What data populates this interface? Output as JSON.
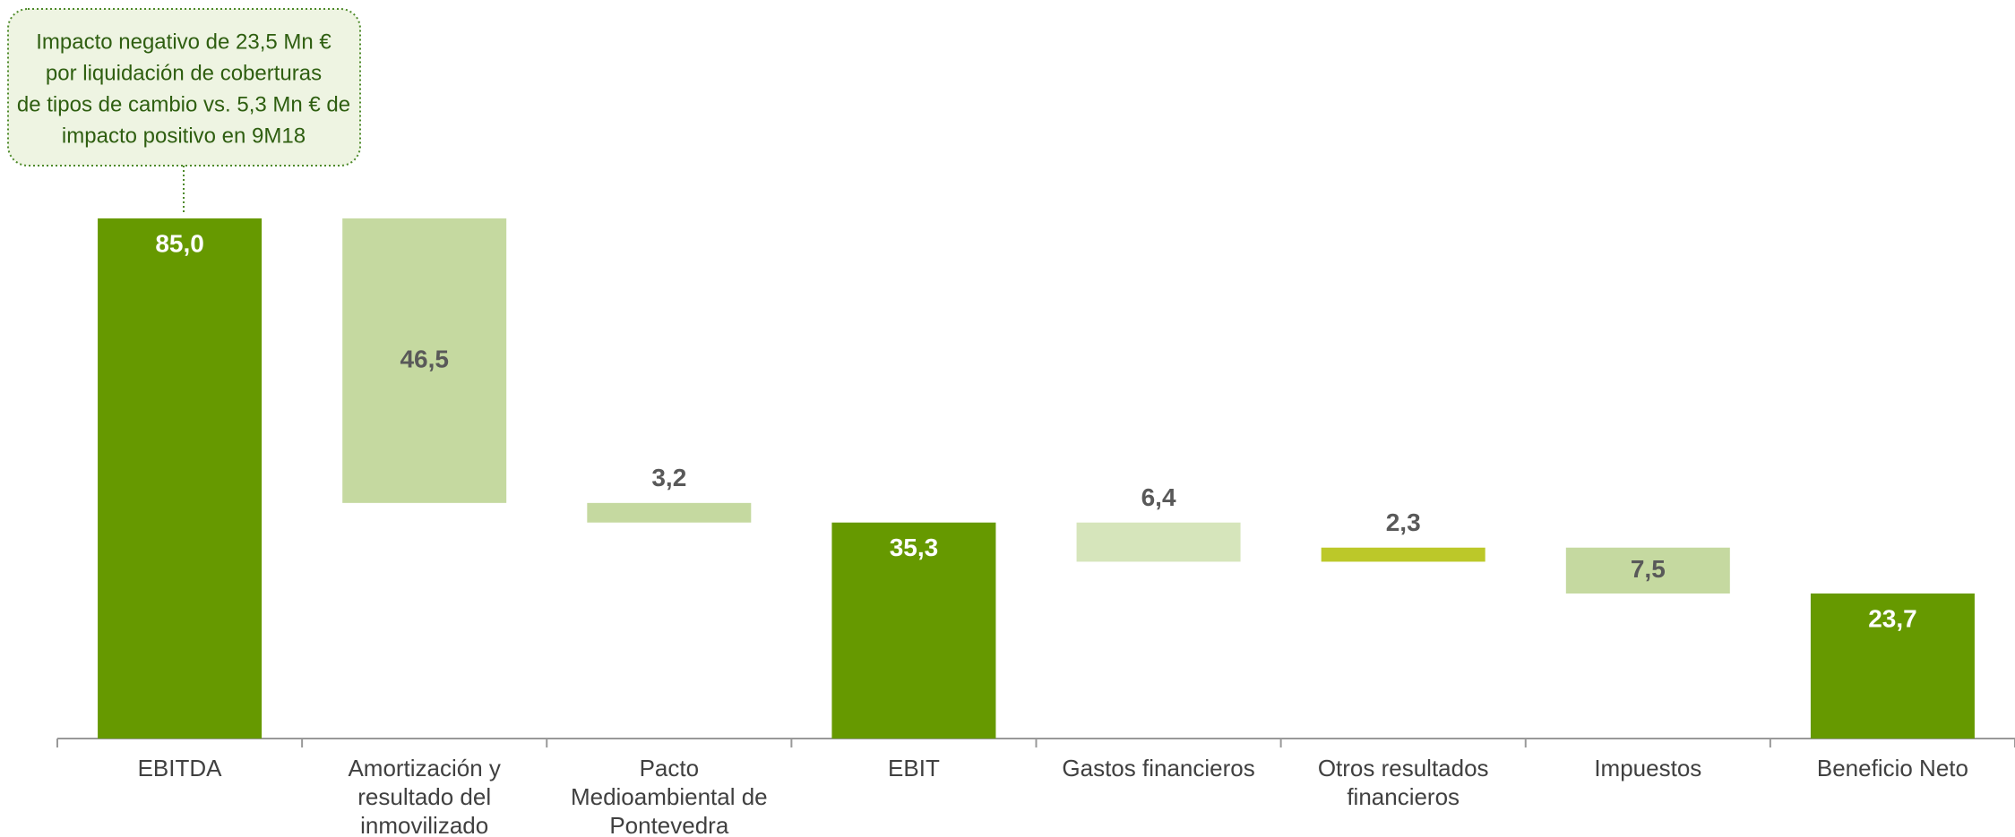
{
  "chart_data": {
    "type": "waterfall",
    "annotation": [
      "Impacto negativo de 23,5 Mn €",
      "por liquidación de coberturas",
      "de tipos de cambio vs. 5,3 Mn € de",
      "impacto positivo en 9M18"
    ],
    "categories": [
      "EBITDA",
      "Amortización y resultado del inmovilizado",
      "Pacto Medioambiental de Pontevedra",
      "EBIT",
      "Gastos financieros",
      "Otros resultados financieros",
      "Impuestos",
      "Beneficio Neto"
    ],
    "values": [
      85.0,
      -46.5,
      -3.2,
      35.3,
      -6.4,
      2.3,
      -7.5,
      23.7
    ],
    "value_labels": [
      "85,0",
      "46,5",
      "3,2",
      "35,3",
      "6,4",
      "2,3",
      "7,5",
      "23,7"
    ],
    "totals": [
      true,
      false,
      false,
      true,
      false,
      false,
      false,
      true
    ],
    "colors": [
      "#669900",
      "#c5d9a0",
      "#c5d9a0",
      "#669900",
      "#d6e5bb",
      "#bcc829",
      "#c5d9a0",
      "#669900"
    ],
    "ylim": [
      0,
      85
    ]
  }
}
